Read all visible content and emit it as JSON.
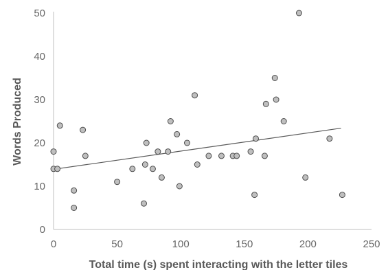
{
  "chart_data": {
    "type": "scatter",
    "title": "",
    "xlabel": "Total time (s) spent interacting with the letter tiles",
    "ylabel": "Words Produced",
    "xlim": [
      0,
      250
    ],
    "ylim": [
      0,
      50
    ],
    "x_ticks": [
      0,
      50,
      100,
      150,
      200,
      250
    ],
    "y_ticks": [
      0,
      10,
      20,
      30,
      40,
      50
    ],
    "x_tick_labels": [
      "0",
      "50",
      "100",
      "150",
      "200",
      "250"
    ],
    "y_tick_labels": [
      "0",
      "10",
      "20",
      "30",
      "40",
      "50"
    ],
    "grid": false,
    "legend": "none",
    "marker": {
      "fill": "#bfbfbf",
      "stroke": "#4d4d4d"
    },
    "axis_color": "#bfbfbf",
    "trendline_color": "#595959",
    "points": [
      {
        "x": 0,
        "y": 14
      },
      {
        "x": 0,
        "y": 18
      },
      {
        "x": 3,
        "y": 14
      },
      {
        "x": 5,
        "y": 24
      },
      {
        "x": 16,
        "y": 5
      },
      {
        "x": 16,
        "y": 9
      },
      {
        "x": 23,
        "y": 23
      },
      {
        "x": 25,
        "y": 17
      },
      {
        "x": 50,
        "y": 11
      },
      {
        "x": 62,
        "y": 14
      },
      {
        "x": 71,
        "y": 6
      },
      {
        "x": 72,
        "y": 15
      },
      {
        "x": 73,
        "y": 20
      },
      {
        "x": 78,
        "y": 14
      },
      {
        "x": 82,
        "y": 18
      },
      {
        "x": 85,
        "y": 12
      },
      {
        "x": 90,
        "y": 18
      },
      {
        "x": 92,
        "y": 25
      },
      {
        "x": 97,
        "y": 22
      },
      {
        "x": 99,
        "y": 10
      },
      {
        "x": 105,
        "y": 20
      },
      {
        "x": 111,
        "y": 31
      },
      {
        "x": 113,
        "y": 15
      },
      {
        "x": 122,
        "y": 17
      },
      {
        "x": 132,
        "y": 17
      },
      {
        "x": 141,
        "y": 17
      },
      {
        "x": 144,
        "y": 17
      },
      {
        "x": 155,
        "y": 18
      },
      {
        "x": 158,
        "y": 8
      },
      {
        "x": 159,
        "y": 21
      },
      {
        "x": 166,
        "y": 17
      },
      {
        "x": 167,
        "y": 29
      },
      {
        "x": 174,
        "y": 35
      },
      {
        "x": 175,
        "y": 30
      },
      {
        "x": 181,
        "y": 25
      },
      {
        "x": 193,
        "y": 50
      },
      {
        "x": 198,
        "y": 12
      },
      {
        "x": 217,
        "y": 21
      },
      {
        "x": 227,
        "y": 8
      }
    ],
    "trendline": {
      "x": [
        0,
        226
      ],
      "y": [
        13.9,
        23.4
      ]
    }
  }
}
